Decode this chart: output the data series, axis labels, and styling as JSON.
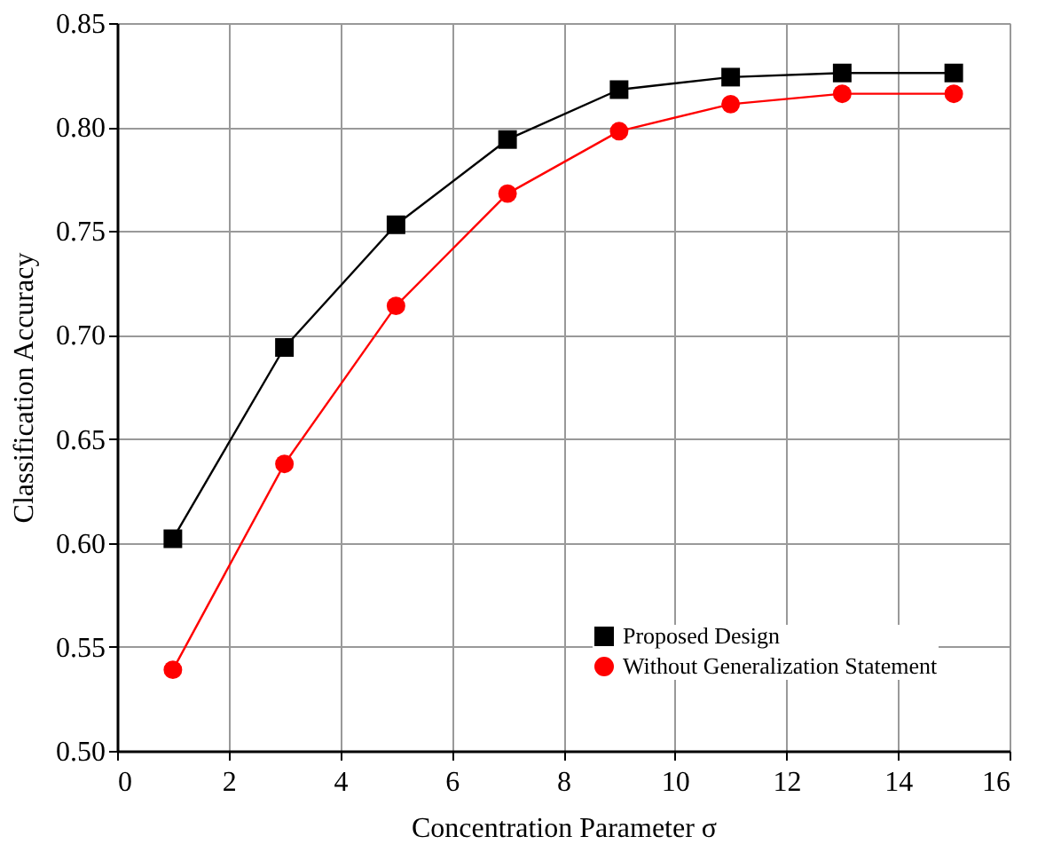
{
  "chart_data": {
    "type": "line",
    "xlabel": "Concentration Parameter σ",
    "ylabel": "Classification Accuracy",
    "x": [
      1,
      3,
      5,
      7,
      9,
      11,
      13,
      15
    ],
    "series": [
      {
        "name": "Proposed Design",
        "color": "#000000",
        "marker": "square",
        "values": [
          0.602,
          0.694,
          0.753,
          0.794,
          0.818,
          0.824,
          0.826,
          0.826
        ]
      },
      {
        "name": "Without Generalization Statement",
        "color": "#ff0000",
        "marker": "circle",
        "values": [
          0.539,
          0.638,
          0.714,
          0.768,
          0.798,
          0.811,
          0.816,
          0.816
        ]
      }
    ],
    "xlim": [
      0,
      16
    ],
    "xticks": [
      0,
      2,
      4,
      6,
      8,
      10,
      12,
      14,
      16
    ],
    "ylim": [
      0.5,
      0.85
    ],
    "yticks": [
      {
        "value": 0.5,
        "label": "0.50"
      },
      0.55,
      {
        "value": 0.6,
        "label": "0.60"
      },
      0.65,
      {
        "value": 0.7,
        "label": "0.70"
      },
      0.75,
      {
        "value": 0.8,
        "label": "0.80"
      },
      0.85
    ],
    "grid": true,
    "legend": "bottom right",
    "line_style": "solid"
  }
}
